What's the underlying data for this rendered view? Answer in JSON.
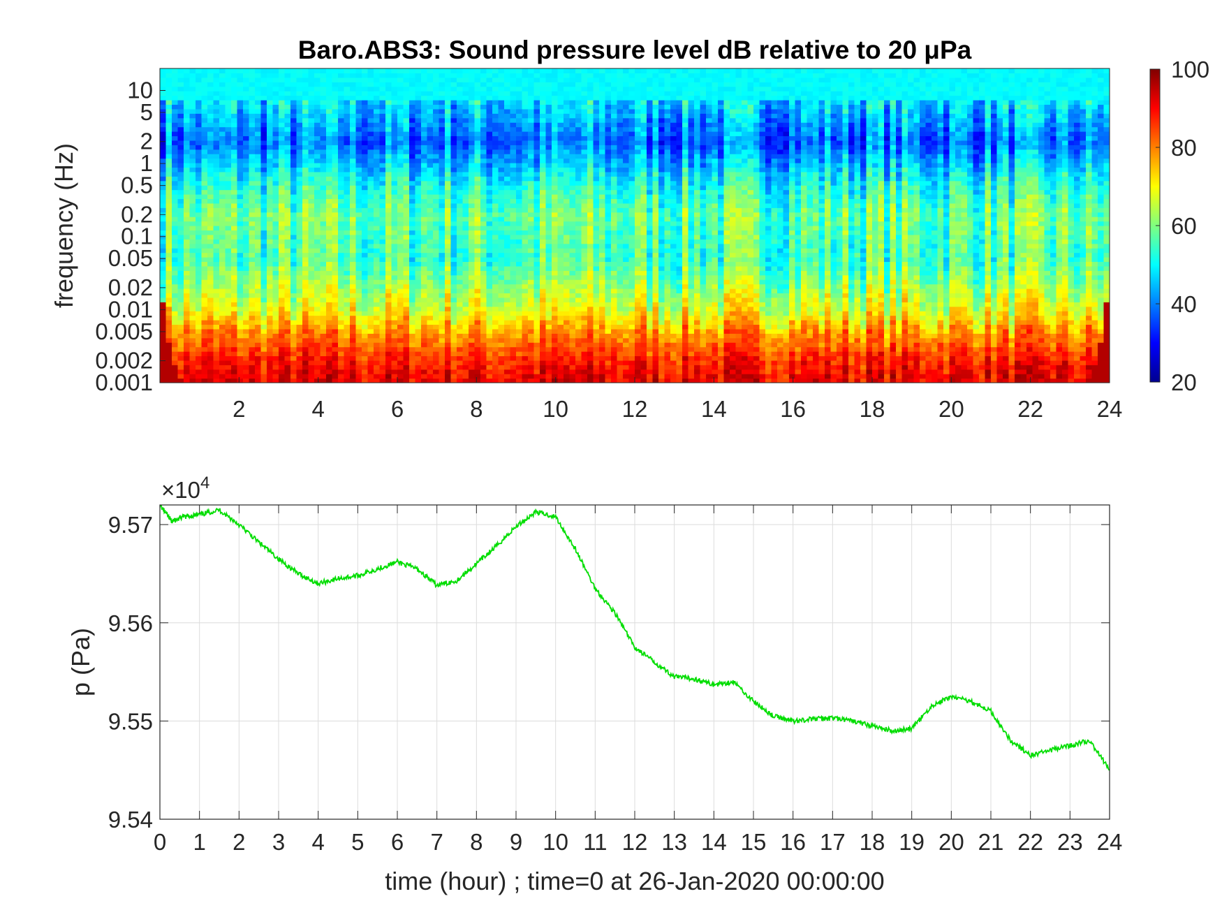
{
  "chart_data": [
    {
      "type": "heatmap",
      "title": "Baro.ABS3: Sound pressure level dB relative to 20 μPa",
      "ylabel": "frequency (Hz)",
      "xlabel": "",
      "x_range": [
        0,
        24
      ],
      "xticks": [
        2,
        4,
        6,
        8,
        10,
        12,
        14,
        16,
        18,
        20,
        22,
        24
      ],
      "y_scale": "log",
      "y_range": [
        0.001,
        20
      ],
      "yticks": [
        0.001,
        0.002,
        0.005,
        0.01,
        0.02,
        0.05,
        0.1,
        0.2,
        0.5,
        1,
        2,
        5,
        10
      ],
      "ytick_labels": [
        "0.001",
        "0.002",
        "0.005",
        "0.01",
        "0.02",
        "0.05",
        "0.1",
        "0.2",
        "0.5",
        "1",
        "2",
        "5",
        "10"
      ],
      "colormap": "jet",
      "colorbar": {
        "range": [
          20,
          100
        ],
        "ticks": [
          20,
          40,
          60,
          80,
          100
        ]
      },
      "approx_levels_db": [
        {
          "frequency_hz": 10,
          "level_db": 50
        },
        {
          "frequency_hz": 2,
          "level_db": 38
        },
        {
          "frequency_hz": 0.5,
          "level_db": 52
        },
        {
          "frequency_hz": 0.2,
          "level_db": 58
        },
        {
          "frequency_hz": 0.05,
          "level_db": 55
        },
        {
          "frequency_hz": 0.01,
          "level_db": 68
        },
        {
          "frequency_hz": 0.005,
          "level_db": 78
        },
        {
          "frequency_hz": 0.002,
          "level_db": 88
        },
        {
          "frequency_hz": 0.001,
          "level_db": 92
        }
      ]
    },
    {
      "type": "line",
      "xlabel": "time (hour) ; time=0 at 26-Jan-2020 00:00:00",
      "ylabel": "p (Pa)",
      "y_multiplier_label": "×10",
      "y_multiplier_exp": "4",
      "xlim": [
        0,
        24
      ],
      "ylim": [
        95400,
        95720
      ],
      "xticks": [
        0,
        1,
        2,
        3,
        4,
        5,
        6,
        7,
        8,
        9,
        10,
        11,
        12,
        13,
        14,
        15,
        16,
        17,
        18,
        19,
        20,
        21,
        22,
        23,
        24
      ],
      "yticks": [
        95400,
        95500,
        95600,
        95700
      ],
      "ytick_labels": [
        "9.54",
        "9.55",
        "9.56",
        "9.57"
      ],
      "grid": true,
      "line_color": "#00dd00",
      "series": [
        {
          "x": [
            0,
            0.3,
            0.6,
            1,
            1.5,
            2,
            2.5,
            3,
            3.5,
            4,
            4.5,
            5,
            5.5,
            6,
            6.5,
            7,
            7.5,
            8,
            8.5,
            9,
            9.5,
            10,
            10.5,
            11,
            11.5,
            12,
            12.5,
            13,
            13.5,
            14,
            14.5,
            15,
            15.5,
            16,
            16.5,
            17,
            17.5,
            18,
            18.5,
            19,
            19.5,
            20,
            20.5,
            21,
            21.5,
            22,
            22.5,
            23,
            23.5,
            24
          ],
          "y": [
            95720,
            95703,
            95708,
            95710,
            95715,
            95700,
            95682,
            95665,
            95650,
            95640,
            95645,
            95648,
            95655,
            95662,
            95655,
            95638,
            95643,
            95660,
            95678,
            95698,
            95713,
            95708,
            95675,
            95635,
            95610,
            95575,
            95560,
            95545,
            95543,
            95537,
            95540,
            95520,
            95505,
            95500,
            95502,
            95503,
            95500,
            95495,
            95490,
            95492,
            95515,
            95525,
            95520,
            95510,
            95480,
            95465,
            95470,
            95475,
            95480,
            95450
          ]
        }
      ]
    }
  ]
}
